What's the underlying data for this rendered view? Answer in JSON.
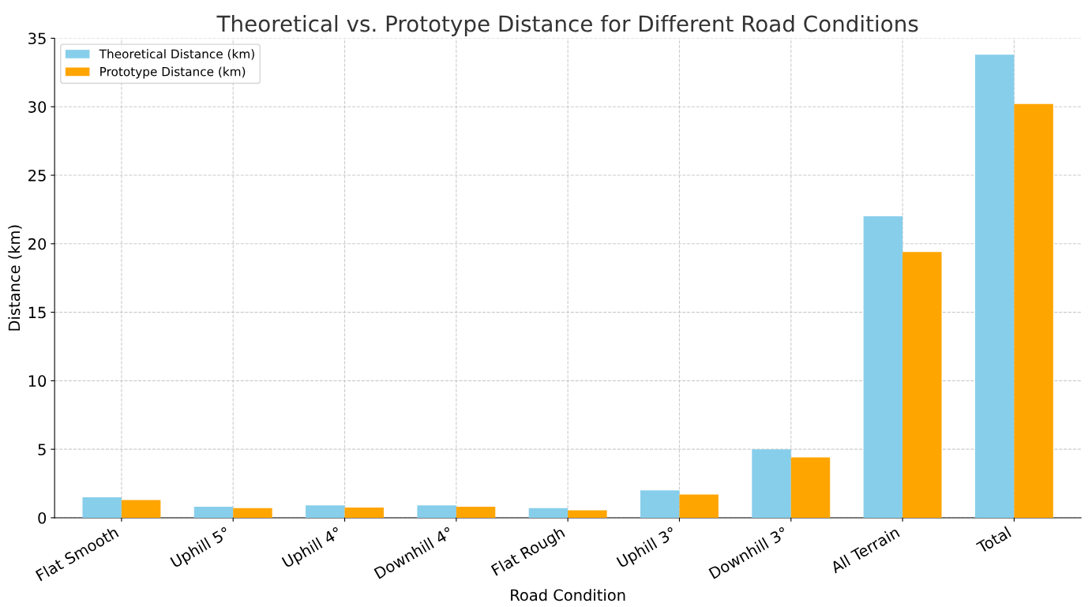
{
  "chart_data": {
    "type": "bar",
    "title": "Theoretical vs. Prototype Distance for Different Road Conditions",
    "xlabel": "Road Condition",
    "ylabel": "Distance (km)",
    "categories": [
      "Flat Smooth",
      "Uphill 5°",
      "Uphill 4°",
      "Downhill 4°",
      "Flat Rough",
      "Uphill 3°",
      "Downhill 3°",
      "All Terrain",
      "Total"
    ],
    "series": [
      {
        "name": "Theoretical Distance (km)",
        "color": "#87ceeb",
        "values": [
          1.5,
          0.8,
          0.9,
          0.9,
          0.7,
          2.0,
          5.0,
          22.0,
          33.8
        ]
      },
      {
        "name": "Prototype Distance (km)",
        "color": "#ffa500",
        "values": [
          1.3,
          0.7,
          0.75,
          0.8,
          0.55,
          1.7,
          4.4,
          19.4,
          30.2
        ]
      }
    ],
    "ylim": [
      0,
      35
    ],
    "yticks": [
      0,
      5,
      10,
      15,
      20,
      25,
      30,
      35
    ],
    "grid": true,
    "legend": "top left"
  }
}
